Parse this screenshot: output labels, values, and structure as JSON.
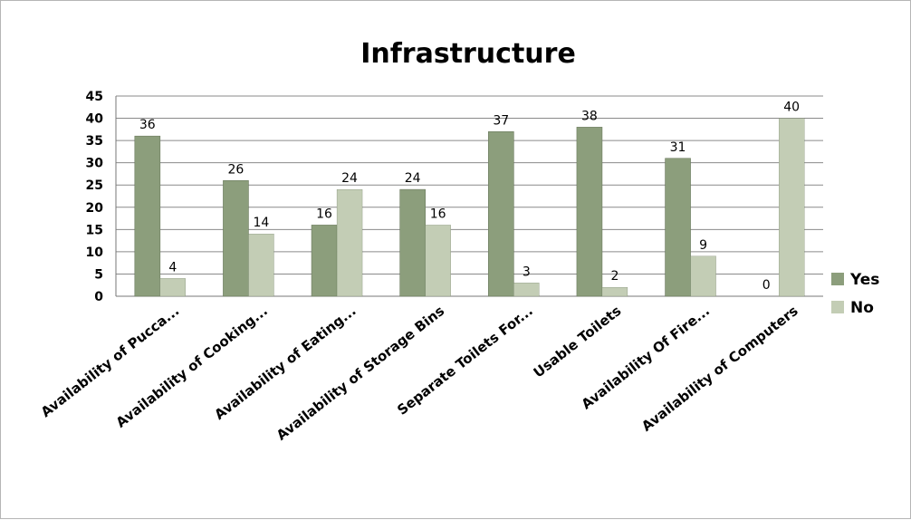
{
  "chart_data": {
    "type": "bar",
    "title": "Infrastructure",
    "categories": [
      "Availability of Pucca...",
      "Availability of Cooking...",
      "Availability of Eating...",
      "Availability of Storage Bins",
      "Separate Toilets For...",
      "Usable Toilets",
      "Availability Of Fire...",
      "Availability of Computers"
    ],
    "series": [
      {
        "name": "Yes",
        "color": "#8c9e7c",
        "values": [
          36,
          26,
          16,
          24,
          37,
          38,
          31,
          0
        ]
      },
      {
        "name": "No",
        "color": "#c3cdb5",
        "values": [
          4,
          14,
          24,
          16,
          3,
          2,
          9,
          40
        ]
      }
    ],
    "yticks": [
      0,
      5,
      10,
      15,
      20,
      25,
      30,
      35,
      40,
      45
    ],
    "ylim": [
      0,
      45
    ],
    "grid": true,
    "legend": "right",
    "xlabel": "",
    "ylabel": ""
  }
}
